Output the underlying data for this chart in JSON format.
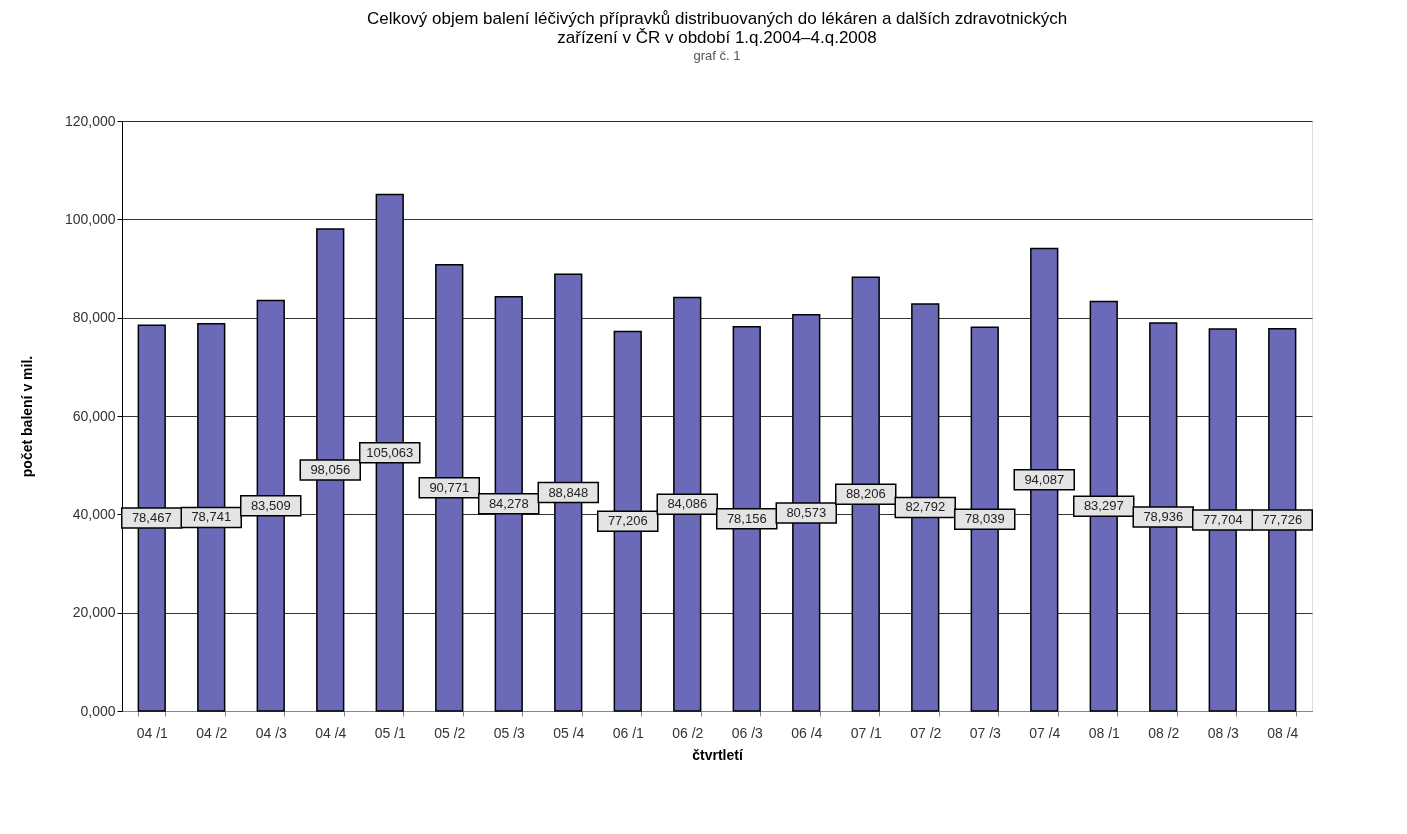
{
  "chart_data": {
    "type": "bar",
    "title": "Celkový objem balení léčivých přípravků distribuovaných do lékáren a dalších zdravotnických\nzařízení v ČR v období 1.q.2004–4.q.2008",
    "xlabel": "čtvrtletí",
    "ylabel": "počet balení v mil.",
    "annotations": [
      "graf č. 1"
    ],
    "categories": [
      "04 /1",
      "04 /2",
      "04 /3",
      "04 /4",
      "05 /1",
      "05 /2",
      "05 /3",
      "05 /4",
      "06 /1",
      "06 /2",
      "06 /3",
      "06 /4",
      "07 /1",
      "07 /2",
      "07 /3",
      "07 /4",
      "08 /1",
      "08 /2",
      "08 /3",
      "08 /4"
    ],
    "values": [
      78467,
      78741,
      83509,
      98056,
      105063,
      90771,
      84278,
      88848,
      77206,
      84086,
      78156,
      80573,
      88206,
      82792,
      78039,
      94087,
      83297,
      78936,
      77704,
      77726
    ],
    "value_labels": [
      "78,467",
      "78,741",
      "83,509",
      "98,056",
      "105,063",
      "90,771",
      "84,278",
      "88,848",
      "77,206",
      "84,086",
      "78,156",
      "80,573",
      "88,206",
      "82,792",
      "78,039",
      "94,087",
      "83,297",
      "78,936",
      "77,704",
      "77,726"
    ],
    "color": "#6a6ab8",
    "ylim": [
      0,
      120000
    ],
    "yticks": [
      {
        "value": 0,
        "label": "0,000"
      },
      {
        "value": 20000,
        "label": "20,000"
      },
      {
        "value": 40000,
        "label": "40,000"
      },
      {
        "value": 60000,
        "label": "60,000"
      },
      {
        "value": 80000,
        "label": "80,000"
      },
      {
        "value": 100000,
        "label": "100,000"
      },
      {
        "value": 120000,
        "label": "120,000"
      }
    ],
    "grid": "y"
  }
}
